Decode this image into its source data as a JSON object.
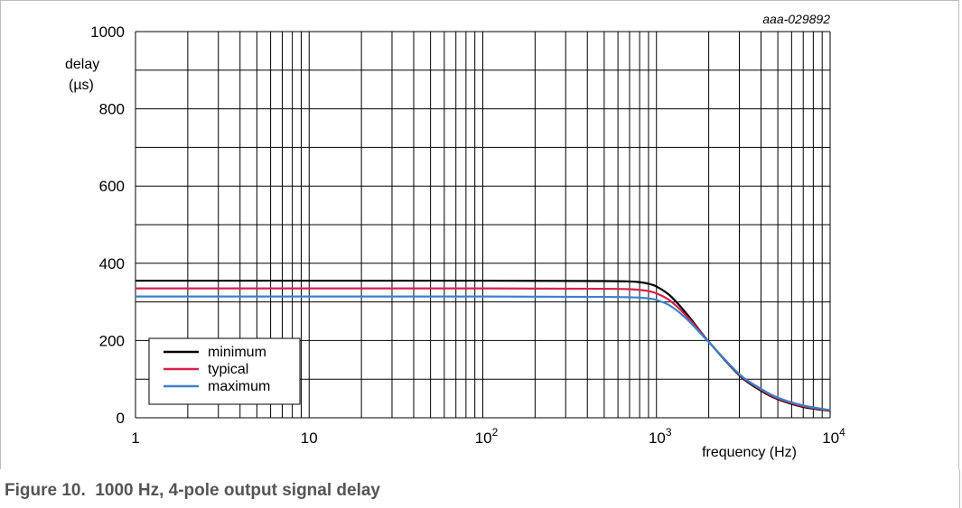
{
  "figure_code": "aaa-029892",
  "caption": {
    "number": "Figure 10.",
    "title": "1000 Hz, 4-pole output signal delay"
  },
  "chart_data": {
    "type": "line",
    "xscale": "log",
    "xlim": [
      1,
      10000
    ],
    "ylim": [
      0,
      1000
    ],
    "xlabel": "frequency (Hz)",
    "ylabel_lines": [
      "delay",
      "(µs)"
    ],
    "x_ticks": [
      {
        "value": 1,
        "base": "1",
        "exp": ""
      },
      {
        "value": 10,
        "base": "10",
        "exp": ""
      },
      {
        "value": 100,
        "base": "10",
        "exp": "2"
      },
      {
        "value": 1000,
        "base": "10",
        "exp": "3"
      },
      {
        "value": 10000,
        "base": "10",
        "exp": "4"
      }
    ],
    "y_ticks": [
      0,
      200,
      400,
      600,
      800,
      1000
    ],
    "grid": true,
    "legend_position": "bottom-left",
    "series": [
      {
        "name": "minimum",
        "color": "#000000",
        "x": [
          1,
          10,
          100,
          500,
          700,
          800,
          900,
          1000,
          1200,
          1500,
          2000,
          3000,
          4000,
          5000,
          7000,
          10000
        ],
        "y": [
          355,
          355,
          355,
          354,
          353,
          351,
          347,
          340,
          316,
          268,
          197,
          110,
          70,
          48,
          28,
          18
        ]
      },
      {
        "name": "typical",
        "color": "#d81e4b",
        "x": [
          1,
          10,
          100,
          500,
          700,
          800,
          900,
          1000,
          1200,
          1500,
          2000,
          3000,
          4000,
          5000,
          7000,
          10000
        ],
        "y": [
          335,
          335,
          335,
          334,
          333,
          331,
          328,
          322,
          303,
          262,
          197,
          112,
          73,
          50,
          30,
          19
        ]
      },
      {
        "name": "maximum",
        "color": "#3b80cc",
        "x": [
          1,
          10,
          100,
          500,
          700,
          800,
          900,
          1000,
          1200,
          1500,
          2000,
          3000,
          4000,
          5000,
          7000,
          10000
        ],
        "y": [
          314,
          314,
          314,
          313,
          312,
          311,
          309,
          305,
          290,
          255,
          196,
          113,
          75,
          52,
          32,
          20
        ]
      }
    ]
  }
}
